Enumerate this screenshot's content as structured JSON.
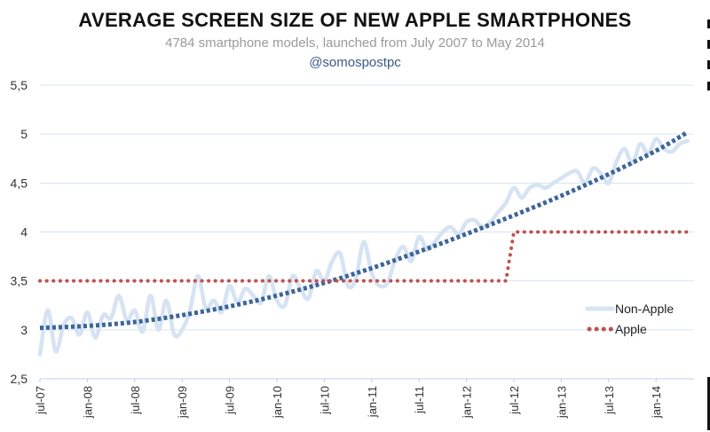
{
  "title": "AVERAGE SCREEN SIZE OF NEW APPLE SMARTPHONES",
  "subtitle": "4784 smartphone models, launched from July 2007 to May 2014",
  "handle": "@somospostpc",
  "colors": {
    "non_apple": "#d5e3f3",
    "trend": "#3d6599",
    "apple": "#c0504d",
    "grid": "#d6e4f0",
    "axis_text": "#333333"
  },
  "chart_data": {
    "type": "line",
    "title": "AVERAGE SCREEN SIZE OF NEW APPLE SMARTPHONES",
    "subtitle": "4784 smartphone models, launched from July 2007 to May 2014",
    "xlabel": "",
    "ylabel": "",
    "ylim": [
      2.5,
      5.5
    ],
    "yticks": [
      "2,5",
      "3",
      "3,5",
      "4",
      "4,5",
      "5",
      "5,5"
    ],
    "ytick_values": [
      2.5,
      3,
      3.5,
      4,
      4.5,
      5,
      5.5
    ],
    "xticks": [
      "jul-07",
      "jan-08",
      "jul-08",
      "jan-09",
      "jul-09",
      "jan-10",
      "jul-10",
      "jan-11",
      "jul-11",
      "jan-12",
      "jul-12",
      "jan-13",
      "jul-13",
      "jan-14"
    ],
    "grid": true,
    "legend_position": "right",
    "legend": [
      "Non-Apple",
      "Apple"
    ],
    "series": [
      {
        "name": "Non-Apple",
        "style": "solid-light",
        "x": [
          0,
          1,
          2,
          3,
          4,
          5,
          6,
          7,
          8,
          9,
          10,
          11,
          12,
          13,
          14,
          15,
          16,
          17,
          18,
          19,
          20,
          21,
          22,
          23,
          24,
          25,
          26,
          27,
          28,
          29,
          30,
          31,
          32,
          33,
          34,
          35,
          36,
          37,
          38,
          39,
          40,
          41,
          42,
          43,
          44,
          45,
          46,
          47,
          48,
          49,
          50,
          51,
          52,
          53,
          54,
          55,
          56,
          57,
          58,
          59,
          60,
          61,
          62,
          63,
          64,
          65,
          66,
          67,
          68,
          69,
          70,
          71,
          72,
          73,
          74,
          75,
          76,
          77,
          78,
          79,
          80,
          81,
          82
        ],
        "values": [
          2.75,
          3.2,
          2.78,
          3.05,
          3.12,
          2.95,
          3.18,
          2.92,
          3.15,
          3.12,
          3.35,
          3.1,
          3.2,
          2.98,
          3.35,
          3.0,
          3.3,
          2.95,
          3.0,
          3.2,
          3.55,
          3.22,
          3.3,
          3.18,
          3.45,
          3.28,
          3.42,
          3.35,
          3.28,
          3.55,
          3.3,
          3.25,
          3.55,
          3.42,
          3.32,
          3.6,
          3.5,
          3.7,
          3.78,
          3.45,
          3.52,
          3.9,
          3.58,
          3.45,
          3.48,
          3.72,
          3.85,
          3.7,
          3.95,
          3.82,
          3.9,
          4.0,
          4.05,
          3.98,
          4.1,
          4.12,
          4.05,
          4.1,
          4.2,
          4.3,
          4.45,
          4.35,
          4.45,
          4.48,
          4.45,
          4.5,
          4.55,
          4.6,
          4.62,
          4.5,
          4.65,
          4.6,
          4.5,
          4.72,
          4.85,
          4.7,
          4.9,
          4.8,
          4.95,
          4.85,
          4.82,
          4.9,
          4.93
        ]
      },
      {
        "name": "",
        "style": "dotted-trend",
        "x": [
          0,
          6,
          12,
          18,
          24,
          30,
          36,
          42,
          48,
          54,
          60,
          66,
          72,
          78,
          82
        ],
        "values": [
          3.02,
          3.04,
          3.08,
          3.15,
          3.24,
          3.35,
          3.48,
          3.63,
          3.8,
          3.98,
          4.17,
          4.37,
          4.59,
          4.83,
          5.02
        ]
      },
      {
        "name": "Apple",
        "style": "dotted",
        "x": [
          0,
          59,
          60,
          82
        ],
        "values": [
          3.5,
          3.5,
          4.0,
          4.0
        ]
      }
    ]
  }
}
